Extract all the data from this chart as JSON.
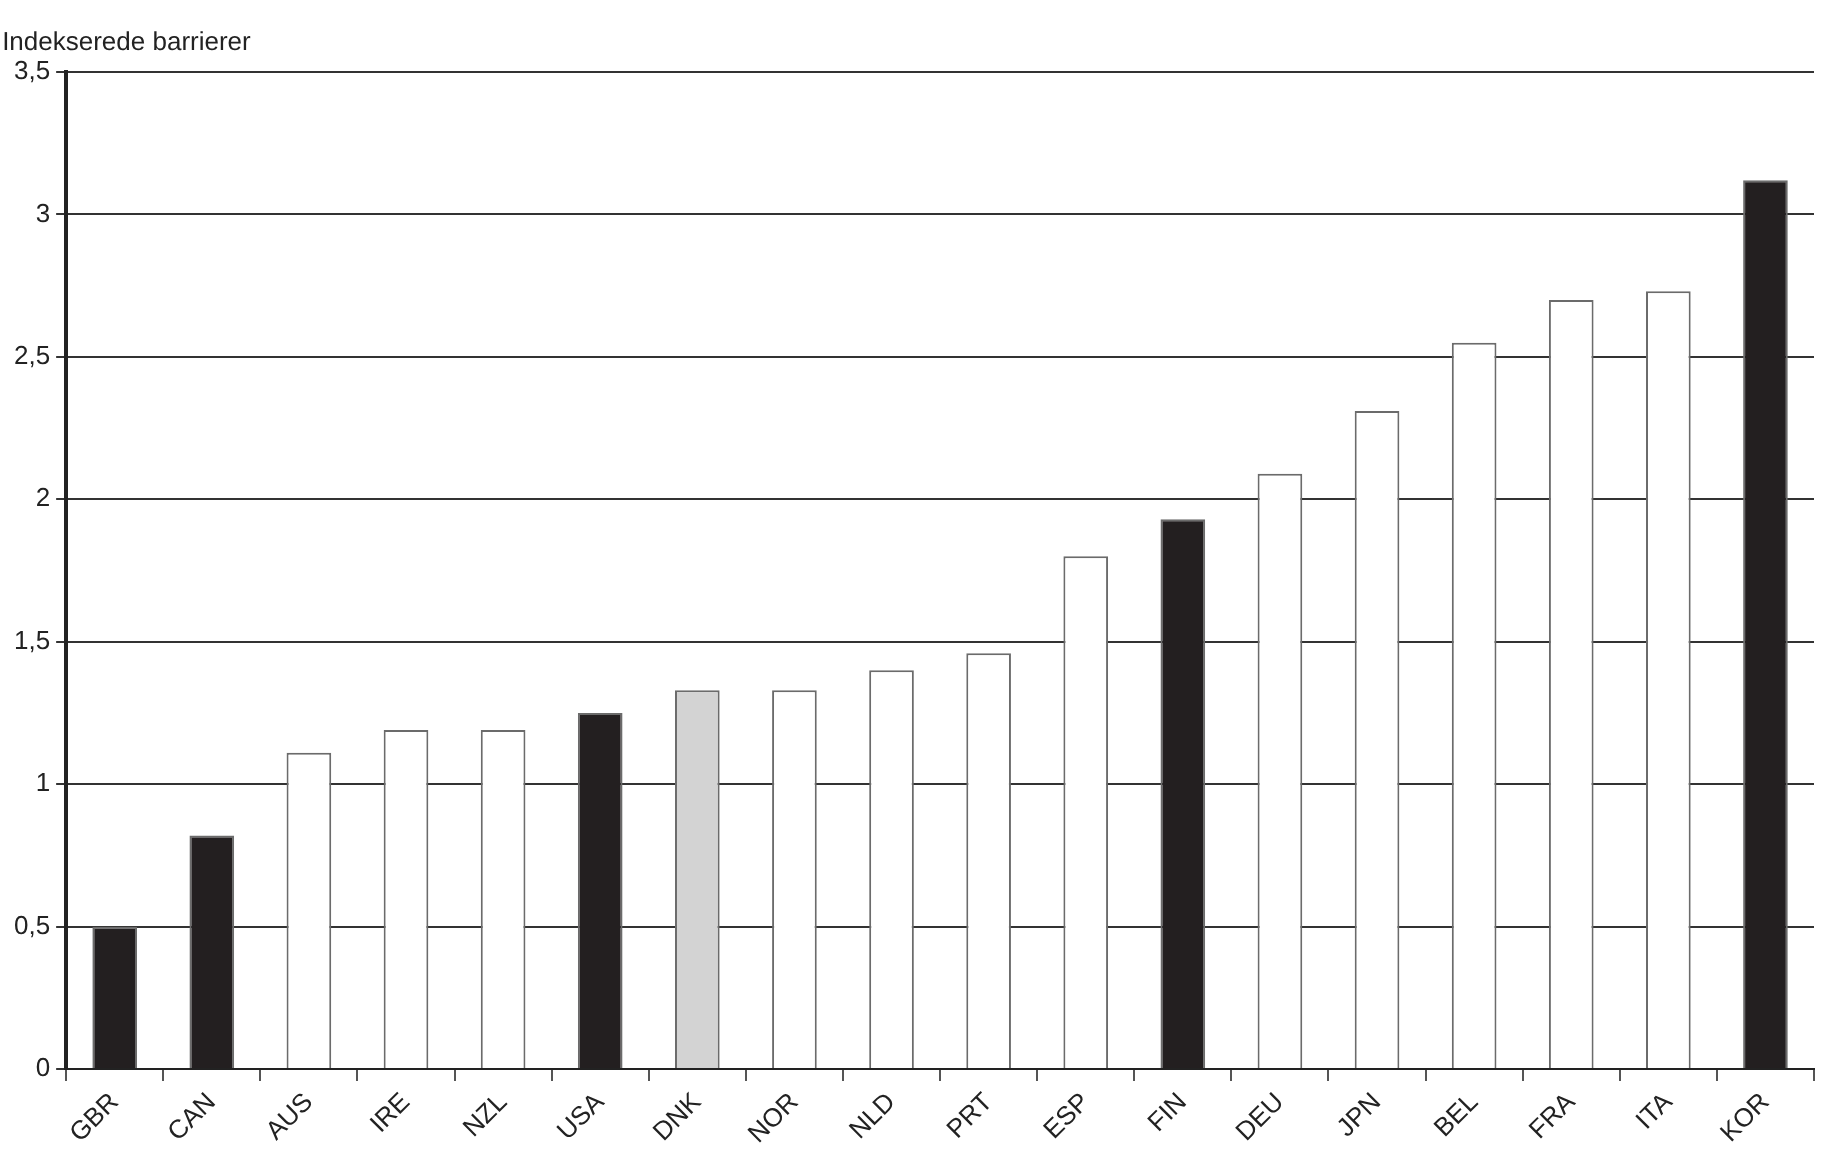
{
  "chart_data": {
    "type": "bar",
    "ylabel": "Indekserede barrierer",
    "categories": [
      "GBR",
      "CAN",
      "AUS",
      "IRE",
      "NZL",
      "USA",
      "DNK",
      "NOR",
      "NLD",
      "PRT",
      "ESP",
      "FIN",
      "DEU",
      "JPN",
      "BEL",
      "FRA",
      "ITA",
      "KOR"
    ],
    "values": [
      0.5,
      0.82,
      1.11,
      1.19,
      1.19,
      1.25,
      1.33,
      1.33,
      1.4,
      1.46,
      1.8,
      1.93,
      2.09,
      2.31,
      2.55,
      2.7,
      2.73,
      3.12
    ],
    "colors": [
      "#231f20",
      "#231f20",
      "#ffffff",
      "#ffffff",
      "#ffffff",
      "#231f20",
      "#d3d3d3",
      "#ffffff",
      "#ffffff",
      "#ffffff",
      "#ffffff",
      "#231f20",
      "#ffffff",
      "#ffffff",
      "#ffffff",
      "#ffffff",
      "#ffffff",
      "#231f20"
    ],
    "ylim": [
      0,
      3.5
    ],
    "yticks": [
      0,
      {
        "value": 0.5,
        "label": "0,5"
      },
      1,
      {
        "value": 1.5,
        "label": "1,5"
      },
      2,
      {
        "value": 2.5,
        "label": "2,5"
      },
      3,
      {
        "value": 3.5,
        "label": "3,5"
      }
    ],
    "grid": "y"
  }
}
